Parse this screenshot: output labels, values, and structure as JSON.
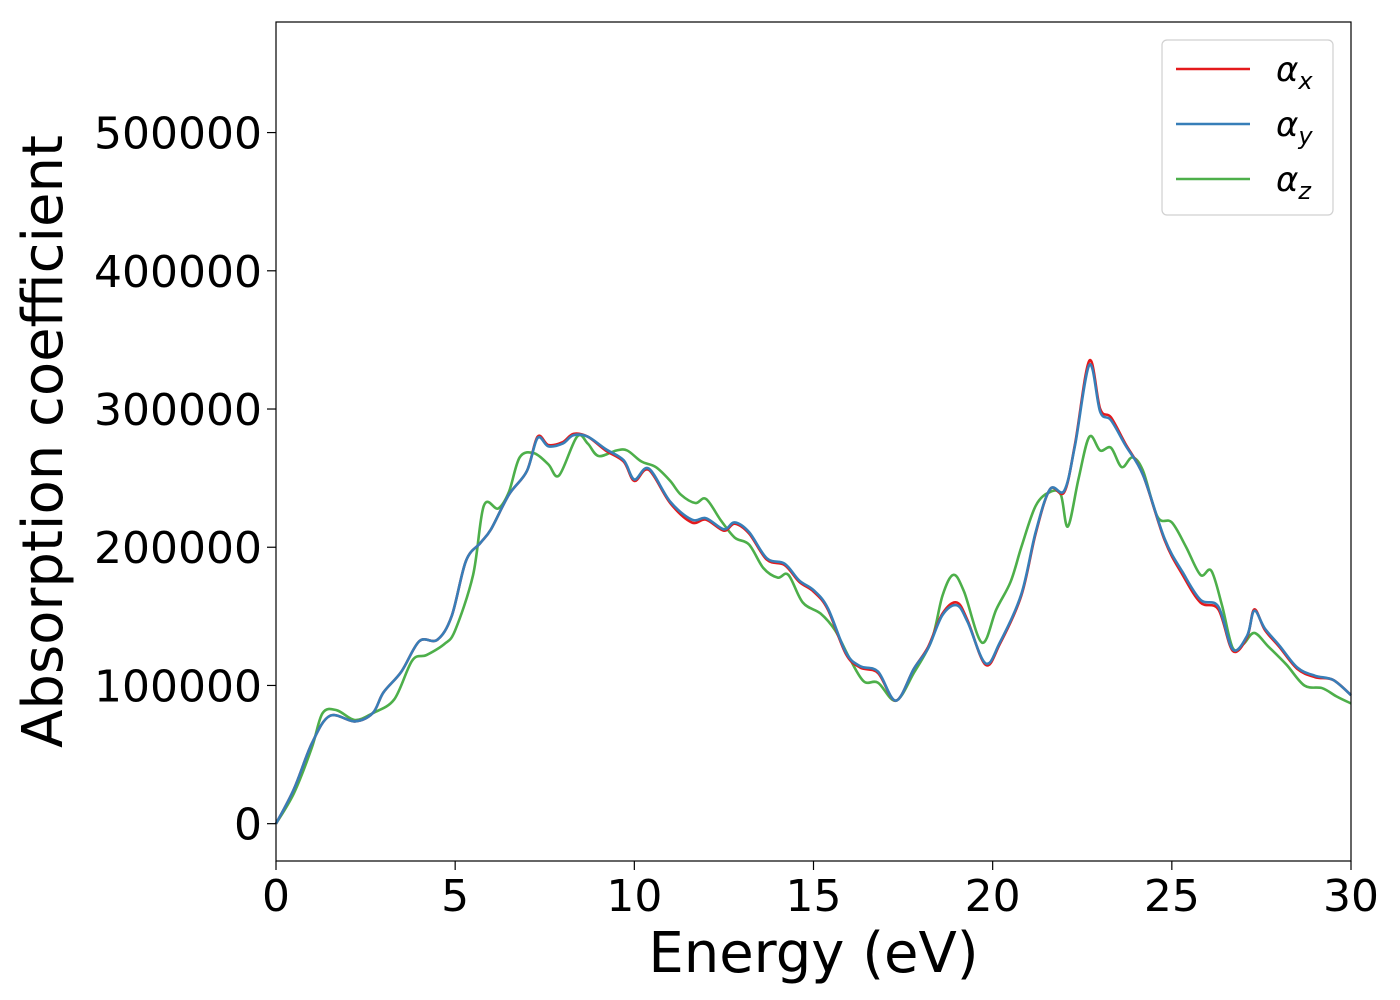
{
  "chart_data": {
    "type": "line",
    "xlabel": "Energy (eV)",
    "ylabel": "Absorption coefficient",
    "xlim": [
      0,
      30
    ],
    "ylim": [
      -27000,
      580000
    ],
    "x_ticks": [
      0,
      5,
      10,
      15,
      20,
      25,
      30
    ],
    "x_tick_labels": [
      "0",
      "5",
      "10",
      "15",
      "20",
      "25",
      "30"
    ],
    "y_ticks": [
      0,
      100000,
      200000,
      300000,
      400000,
      500000
    ],
    "y_tick_labels": [
      "0",
      "100000",
      "200000",
      "300000",
      "400000",
      "500000"
    ],
    "grid": false,
    "legend_position": "top-right",
    "series": [
      {
        "name": "α",
        "subscript": "x",
        "color": "#e41a1c",
        "points": [
          [
            0,
            0
          ],
          [
            0.5,
            25000
          ],
          [
            1,
            58000
          ],
          [
            1.5,
            78000
          ],
          [
            2.2,
            74000
          ],
          [
            2.7,
            80000
          ],
          [
            3,
            95000
          ],
          [
            3.5,
            110000
          ],
          [
            4,
            132000
          ],
          [
            4.5,
            133000
          ],
          [
            4.9,
            150000
          ],
          [
            5.3,
            190000
          ],
          [
            5.7,
            203000
          ],
          [
            6,
            213000
          ],
          [
            6.5,
            238000
          ],
          [
            7,
            255000
          ],
          [
            7.3,
            280000
          ],
          [
            7.6,
            274000
          ],
          [
            8,
            276000
          ],
          [
            8.3,
            282000
          ],
          [
            8.7,
            280000
          ],
          [
            9.2,
            270000
          ],
          [
            9.7,
            262000
          ],
          [
            10,
            248000
          ],
          [
            10.4,
            256000
          ],
          [
            11,
            232000
          ],
          [
            11.6,
            218000
          ],
          [
            12,
            220000
          ],
          [
            12.5,
            212000
          ],
          [
            12.8,
            217000
          ],
          [
            13.2,
            210000
          ],
          [
            13.7,
            191000
          ],
          [
            14.2,
            187000
          ],
          [
            14.6,
            175000
          ],
          [
            15,
            168000
          ],
          [
            15.4,
            155000
          ],
          [
            15.9,
            123000
          ],
          [
            16.3,
            113000
          ],
          [
            16.8,
            109000
          ],
          [
            17.3,
            89000
          ],
          [
            17.8,
            112000
          ],
          [
            18.2,
            128000
          ],
          [
            18.6,
            152000
          ],
          [
            19,
            160000
          ],
          [
            19.3,
            147000
          ],
          [
            19.8,
            115000
          ],
          [
            20.2,
            130000
          ],
          [
            20.8,
            165000
          ],
          [
            21.2,
            210000
          ],
          [
            21.6,
            242000
          ],
          [
            22,
            240000
          ],
          [
            22.3,
            275000
          ],
          [
            22.7,
            335000
          ],
          [
            23,
            300000
          ],
          [
            23.3,
            294000
          ],
          [
            23.7,
            275000
          ],
          [
            24.2,
            252000
          ],
          [
            24.8,
            205000
          ],
          [
            25.3,
            180000
          ],
          [
            25.8,
            160000
          ],
          [
            26.3,
            155000
          ],
          [
            26.7,
            125000
          ],
          [
            27.1,
            135000
          ],
          [
            27.3,
            155000
          ],
          [
            27.6,
            140000
          ],
          [
            28,
            128000
          ],
          [
            28.5,
            112000
          ],
          [
            29,
            106000
          ],
          [
            29.5,
            104000
          ],
          [
            30,
            93000
          ]
        ]
      },
      {
        "name": "α",
        "subscript": "y",
        "color": "#377eb8",
        "points": [
          [
            0,
            0
          ],
          [
            0.5,
            25000
          ],
          [
            1,
            58000
          ],
          [
            1.5,
            78000
          ],
          [
            2.2,
            74000
          ],
          [
            2.7,
            80000
          ],
          [
            3,
            95000
          ],
          [
            3.5,
            110000
          ],
          [
            4,
            132000
          ],
          [
            4.5,
            133000
          ],
          [
            4.9,
            150000
          ],
          [
            5.3,
            190000
          ],
          [
            5.7,
            203000
          ],
          [
            6,
            213000
          ],
          [
            6.5,
            238000
          ],
          [
            7,
            255000
          ],
          [
            7.3,
            279000
          ],
          [
            7.6,
            273000
          ],
          [
            8,
            275000
          ],
          [
            8.3,
            281000
          ],
          [
            8.7,
            280000
          ],
          [
            9.2,
            271000
          ],
          [
            9.7,
            263000
          ],
          [
            10,
            249000
          ],
          [
            10.4,
            257000
          ],
          [
            11,
            233000
          ],
          [
            11.6,
            220000
          ],
          [
            12,
            221000
          ],
          [
            12.5,
            213000
          ],
          [
            12.8,
            218000
          ],
          [
            13.2,
            211000
          ],
          [
            13.7,
            192000
          ],
          [
            14.2,
            188000
          ],
          [
            14.6,
            176000
          ],
          [
            15,
            169000
          ],
          [
            15.4,
            156000
          ],
          [
            15.9,
            124000
          ],
          [
            16.3,
            114000
          ],
          [
            16.8,
            110000
          ],
          [
            17.3,
            89000
          ],
          [
            17.8,
            112000
          ],
          [
            18.2,
            127000
          ],
          [
            18.6,
            151000
          ],
          [
            19,
            158000
          ],
          [
            19.3,
            146000
          ],
          [
            19.8,
            116000
          ],
          [
            20.2,
            131000
          ],
          [
            20.8,
            166000
          ],
          [
            21.2,
            211000
          ],
          [
            21.6,
            242000
          ],
          [
            22,
            241000
          ],
          [
            22.3,
            274000
          ],
          [
            22.7,
            332000
          ],
          [
            23,
            298000
          ],
          [
            23.3,
            292000
          ],
          [
            23.7,
            274000
          ],
          [
            24.2,
            252000
          ],
          [
            24.8,
            206000
          ],
          [
            25.3,
            182000
          ],
          [
            25.8,
            162000
          ],
          [
            26.3,
            157000
          ],
          [
            26.7,
            126000
          ],
          [
            27.1,
            136000
          ],
          [
            27.3,
            154000
          ],
          [
            27.6,
            141000
          ],
          [
            28,
            129000
          ],
          [
            28.5,
            113000
          ],
          [
            29,
            107000
          ],
          [
            29.5,
            104000
          ],
          [
            30,
            93000
          ]
        ]
      },
      {
        "name": "α",
        "subscript": "z",
        "color": "#4daf4a",
        "points": [
          [
            0,
            0
          ],
          [
            0.5,
            22000
          ],
          [
            1,
            55000
          ],
          [
            1.3,
            80000
          ],
          [
            1.7,
            82000
          ],
          [
            2.2,
            75000
          ],
          [
            2.7,
            80000
          ],
          [
            3.3,
            90000
          ],
          [
            3.8,
            118000
          ],
          [
            4.2,
            122000
          ],
          [
            4.7,
            130000
          ],
          [
            5,
            140000
          ],
          [
            5.5,
            180000
          ],
          [
            5.8,
            230000
          ],
          [
            6.2,
            228000
          ],
          [
            6.5,
            240000
          ],
          [
            6.8,
            265000
          ],
          [
            7.2,
            268000
          ],
          [
            7.6,
            260000
          ],
          [
            7.9,
            252000
          ],
          [
            8.4,
            280000
          ],
          [
            8.7,
            275000
          ],
          [
            9,
            266000
          ],
          [
            9.5,
            270000
          ],
          [
            9.8,
            270000
          ],
          [
            10.2,
            262000
          ],
          [
            10.6,
            258000
          ],
          [
            11,
            248000
          ],
          [
            11.3,
            238000
          ],
          [
            11.7,
            232000
          ],
          [
            12,
            235000
          ],
          [
            12.4,
            220000
          ],
          [
            12.8,
            207000
          ],
          [
            13.2,
            202000
          ],
          [
            13.6,
            185000
          ],
          [
            14,
            178000
          ],
          [
            14.3,
            180000
          ],
          [
            14.7,
            160000
          ],
          [
            15.2,
            152000
          ],
          [
            15.6,
            140000
          ],
          [
            16,
            120000
          ],
          [
            16.4,
            103000
          ],
          [
            16.8,
            102000
          ],
          [
            17.3,
            89000
          ],
          [
            17.8,
            109000
          ],
          [
            18.3,
            133000
          ],
          [
            18.6,
            165000
          ],
          [
            18.9,
            180000
          ],
          [
            19.2,
            168000
          ],
          [
            19.7,
            131000
          ],
          [
            20.1,
            155000
          ],
          [
            20.5,
            175000
          ],
          [
            20.8,
            200000
          ],
          [
            21.2,
            230000
          ],
          [
            21.6,
            240000
          ],
          [
            21.9,
            238000
          ],
          [
            22.1,
            215000
          ],
          [
            22.4,
            250000
          ],
          [
            22.7,
            280000
          ],
          [
            23,
            270000
          ],
          [
            23.3,
            272000
          ],
          [
            23.6,
            258000
          ],
          [
            23.9,
            265000
          ],
          [
            24.2,
            255000
          ],
          [
            24.6,
            222000
          ],
          [
            25,
            218000
          ],
          [
            25.4,
            200000
          ],
          [
            25.8,
            180000
          ],
          [
            26.1,
            183000
          ],
          [
            26.4,
            158000
          ],
          [
            26.7,
            127000
          ],
          [
            27,
            130000
          ],
          [
            27.3,
            138000
          ],
          [
            27.7,
            128000
          ],
          [
            28.2,
            115000
          ],
          [
            28.7,
            100000
          ],
          [
            29.2,
            98000
          ],
          [
            29.6,
            92000
          ],
          [
            30,
            87000
          ]
        ]
      }
    ]
  }
}
